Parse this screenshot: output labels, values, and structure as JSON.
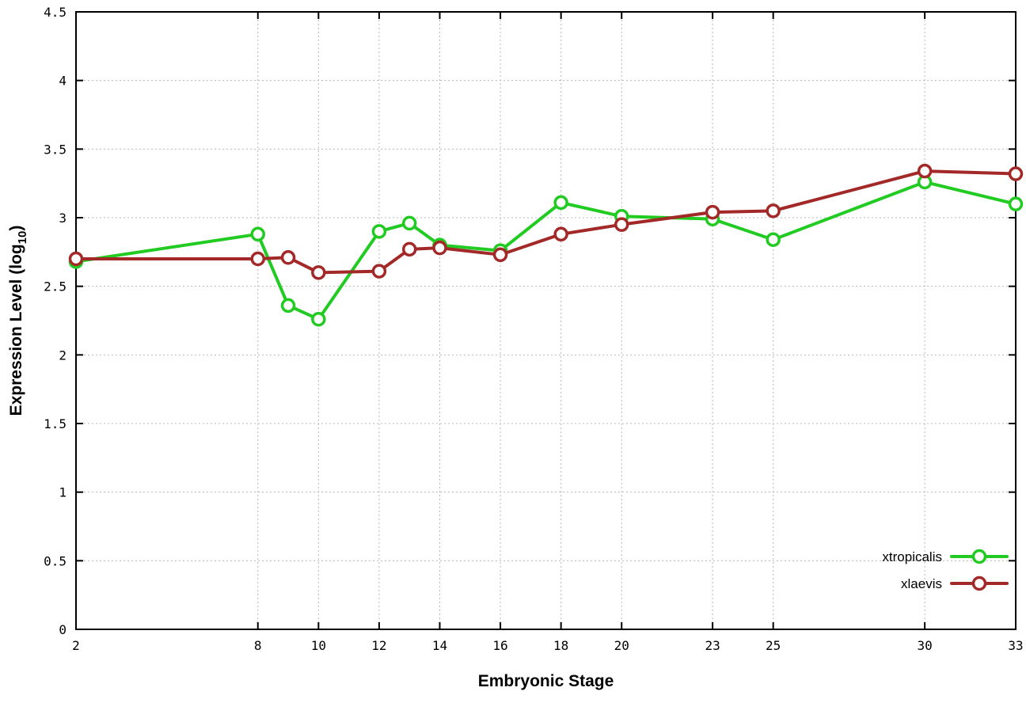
{
  "chart_data": {
    "type": "line",
    "title": "",
    "xlabel": "Embryonic Stage",
    "ylabel": "Expression Level (log10)",
    "ylabel_parts": {
      "prefix": "Expression Level (log",
      "subscript": "10",
      "suffix": ")"
    },
    "xlim": [
      2,
      33
    ],
    "ylim": [
      0,
      4.5
    ],
    "xticks": [
      2,
      8,
      10,
      12,
      14,
      16,
      18,
      20,
      23,
      25,
      30,
      33
    ],
    "yticks": [
      0,
      0.5,
      1,
      1.5,
      2,
      2.5,
      3,
      3.5,
      4,
      4.5
    ],
    "grid": true,
    "legend_position": "bottom-right",
    "series": [
      {
        "name": "xtropicalis",
        "color": "#21cb21",
        "x": [
          2,
          8,
          9,
          10,
          12,
          13,
          14,
          16,
          18,
          20,
          23,
          25,
          30,
          33
        ],
        "y": [
          2.68,
          2.88,
          2.36,
          2.26,
          2.9,
          2.96,
          2.8,
          2.76,
          3.11,
          3.01,
          2.99,
          2.84,
          3.26,
          3.1
        ]
      },
      {
        "name": "xlaevis",
        "color": "#a32929",
        "x": [
          2,
          8,
          9,
          10,
          12,
          13,
          14,
          16,
          18,
          20,
          23,
          25,
          30,
          33
        ],
        "y": [
          2.7,
          2.7,
          2.71,
          2.6,
          2.61,
          2.77,
          2.78,
          2.73,
          2.88,
          2.95,
          3.04,
          3.05,
          3.34,
          3.32
        ]
      }
    ]
  }
}
